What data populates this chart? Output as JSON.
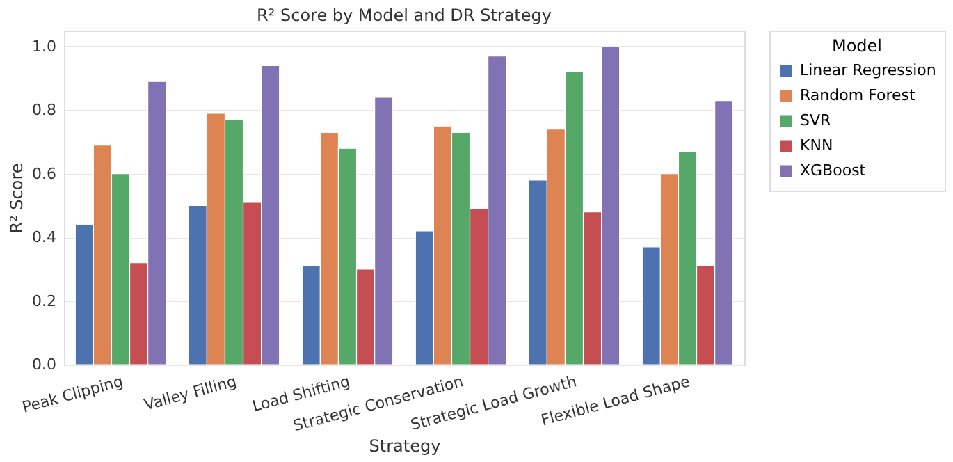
{
  "chart_data": {
    "type": "bar",
    "title": "R² Score by Model and DR Strategy",
    "xlabel": "Strategy",
    "ylabel": "R² Score",
    "legend_title": "Model",
    "categories": [
      "Peak Clipping",
      "Valley Filling",
      "Load Shifting",
      "Strategic Conservation",
      "Strategic Load Growth",
      "Flexible Load Shape"
    ],
    "series": [
      {
        "name": "Linear Regression",
        "color": "#4c72b0",
        "values": [
          0.44,
          0.5,
          0.31,
          0.42,
          0.58,
          0.37
        ]
      },
      {
        "name": "Random Forest",
        "color": "#dd8452",
        "values": [
          0.69,
          0.79,
          0.73,
          0.75,
          0.74,
          0.6
        ]
      },
      {
        "name": "SVR",
        "color": "#55a868",
        "values": [
          0.6,
          0.77,
          0.68,
          0.73,
          0.92,
          0.67
        ]
      },
      {
        "name": "KNN",
        "color": "#c44e52",
        "values": [
          0.32,
          0.51,
          0.3,
          0.49,
          0.48,
          0.31
        ]
      },
      {
        "name": "XGBoost",
        "color": "#8172b3",
        "values": [
          0.89,
          0.94,
          0.84,
          0.97,
          1.0,
          0.83
        ]
      }
    ],
    "ylim": [
      0,
      1.05
    ],
    "yticks": [
      {
        "value": 0,
        "label": "0.0"
      },
      0.2,
      0.4,
      0.6,
      0.8,
      {
        "value": 1,
        "label": "1.0"
      }
    ],
    "grid": "y",
    "legend": "right"
  }
}
